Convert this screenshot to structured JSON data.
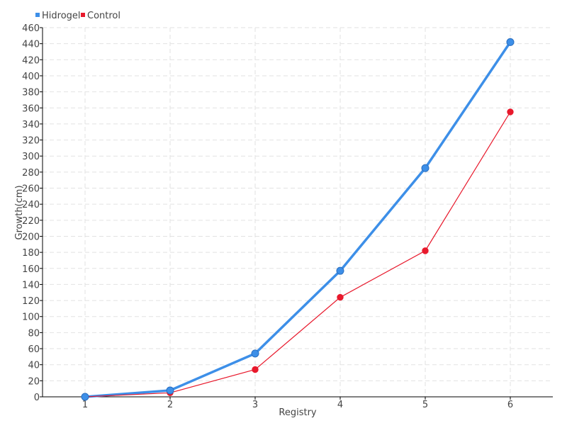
{
  "chart_data": {
    "type": "line",
    "title": "",
    "xlabel": "Registry",
    "ylabel": "Growth(cm)",
    "x": [
      1,
      2,
      3,
      4,
      5,
      6
    ],
    "xlim": [
      0.5,
      6.5
    ],
    "ylim": [
      0,
      460
    ],
    "yticks": [
      0,
      20,
      40,
      60,
      80,
      100,
      120,
      140,
      160,
      180,
      200,
      220,
      240,
      260,
      280,
      300,
      320,
      340,
      360,
      380,
      400,
      420,
      440,
      460
    ],
    "grid": true,
    "legend_position": "top-left",
    "series": [
      {
        "name": "Hidrogel",
        "color": "#3d8fe8",
        "values": [
          0,
          8,
          54,
          157,
          285,
          442
        ]
      },
      {
        "name": "Control",
        "color": "#e8192c",
        "values": [
          0,
          5,
          34,
          124,
          182,
          355
        ]
      }
    ]
  }
}
